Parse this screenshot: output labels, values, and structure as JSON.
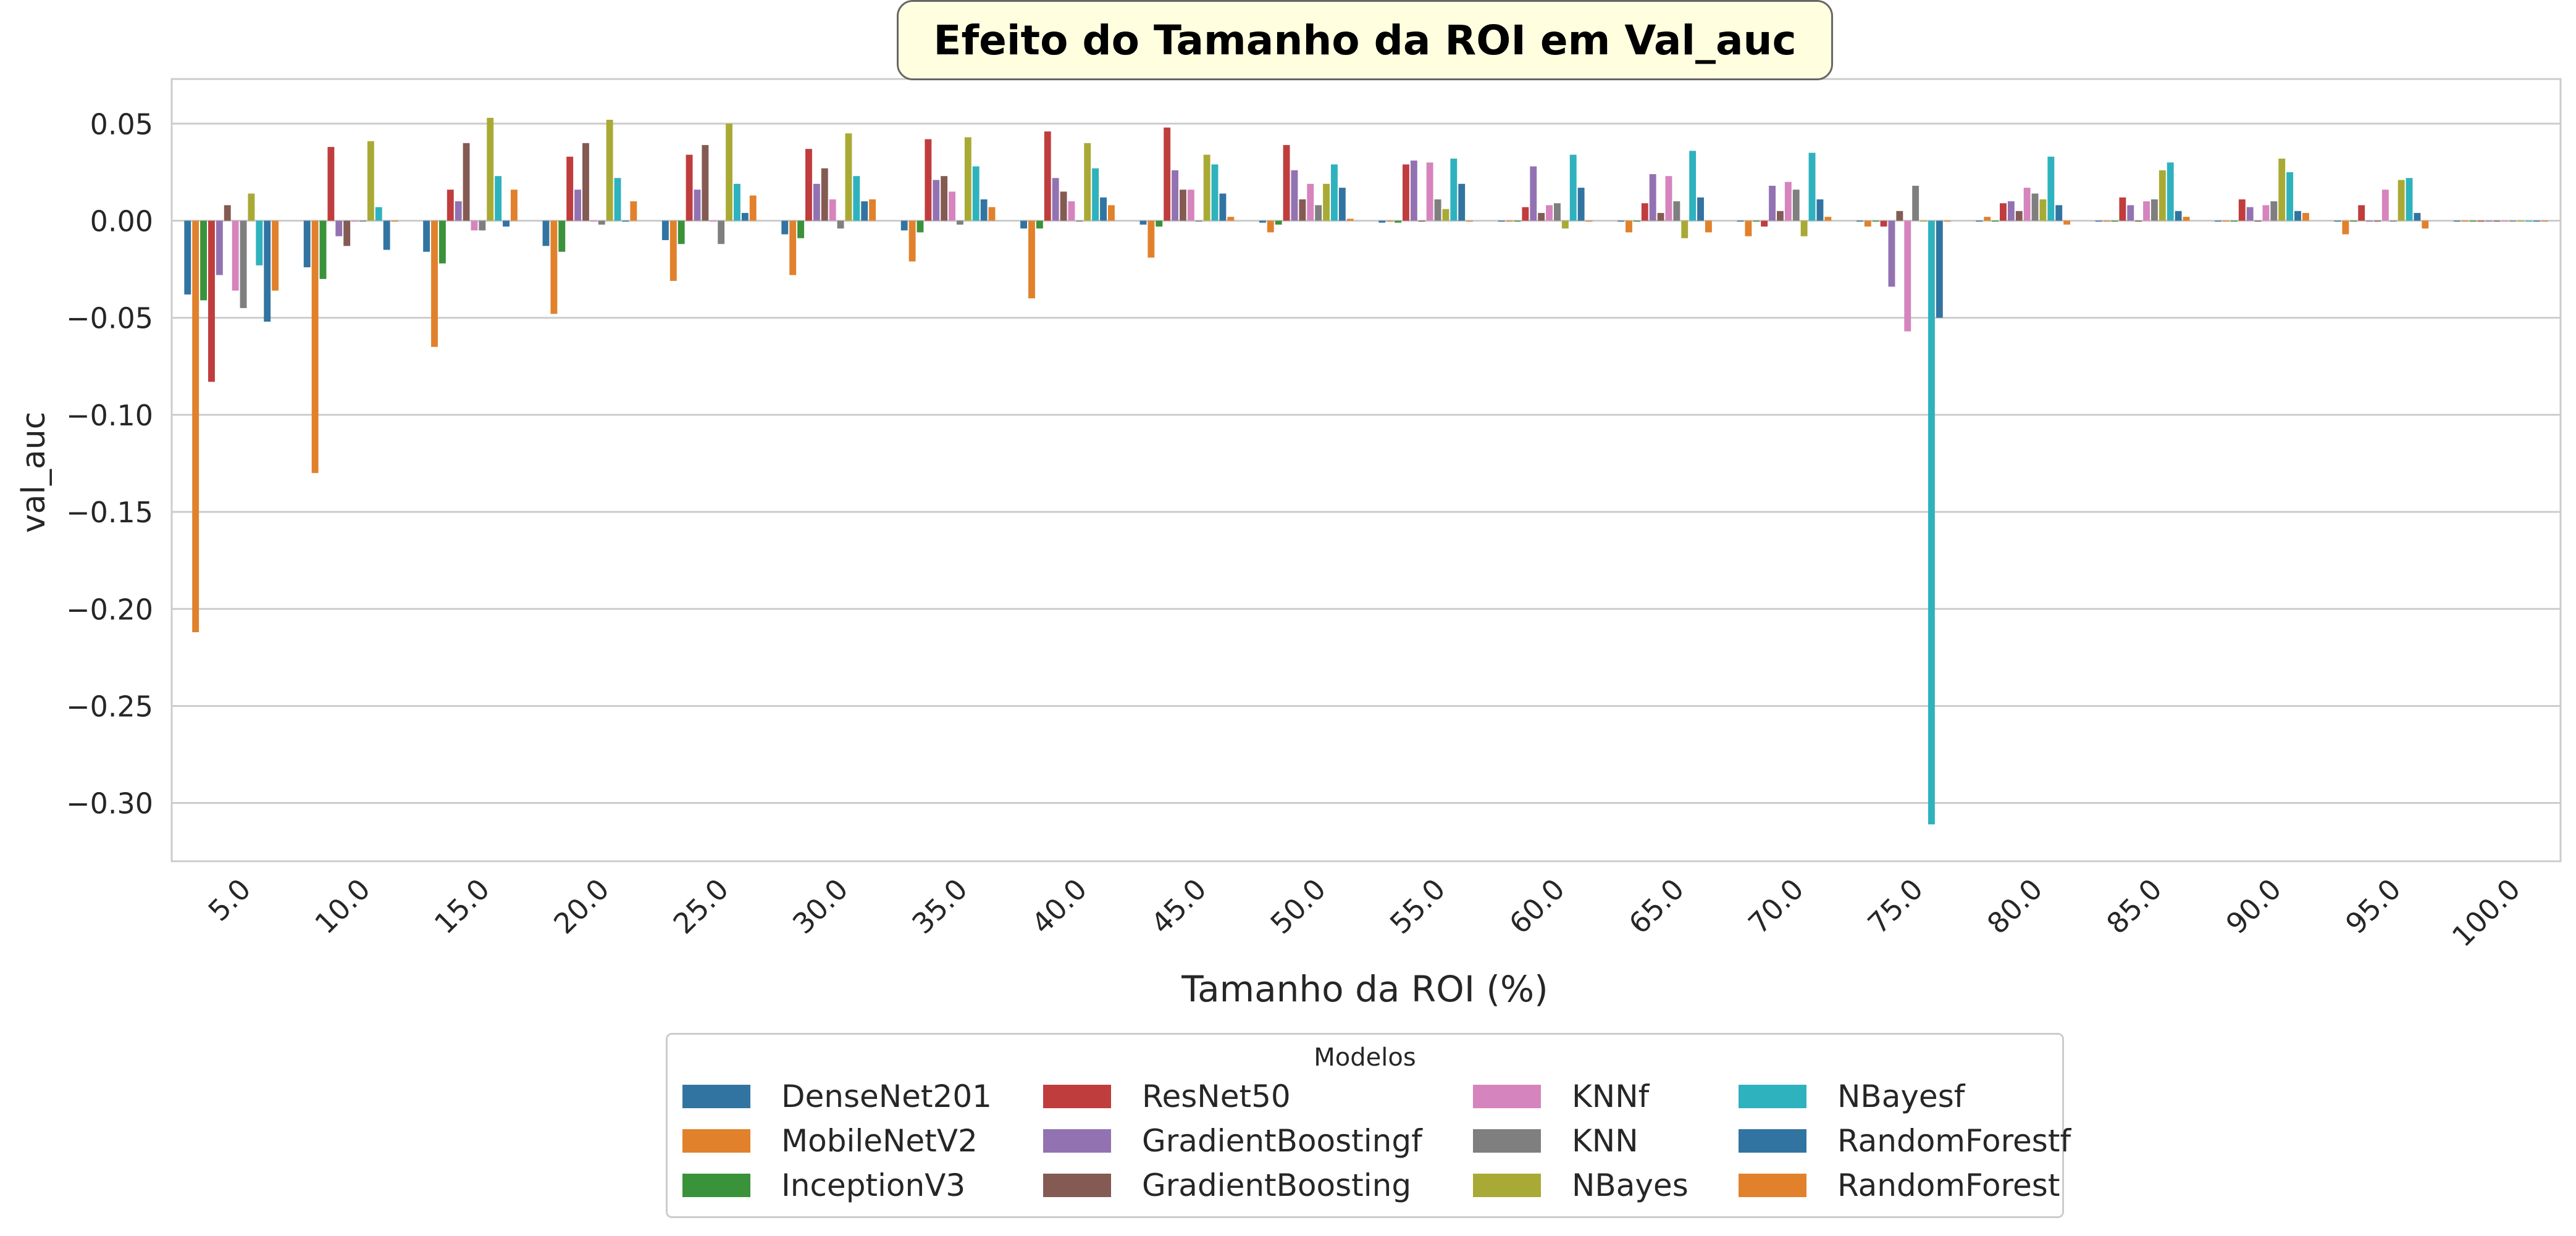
{
  "chart_data": {
    "type": "bar",
    "title": "Efeito do Tamanho da ROI em  Val_auc",
    "xlabel": "Tamanho da ROI (%)",
    "ylabel": "val_auc",
    "ylim": [
      -0.33,
      0.073
    ],
    "yticks": [
      0.05,
      0.0,
      -0.05,
      -0.1,
      -0.15,
      -0.2,
      -0.25,
      -0.3
    ],
    "ytick_labels": [
      "0.05",
      "0.00",
      "−0.05",
      "−0.10",
      "−0.15",
      "−0.20",
      "−0.25",
      "−0.30"
    ],
    "grid": "horizontal",
    "legend_title": "Modelos",
    "legend_position": "bottom-center",
    "categories": [
      "5.0",
      "10.0",
      "15.0",
      "20.0",
      "25.0",
      "30.0",
      "35.0",
      "40.0",
      "45.0",
      "50.0",
      "55.0",
      "60.0",
      "65.0",
      "70.0",
      "75.0",
      "80.0",
      "85.0",
      "90.0",
      "95.0",
      "100.0"
    ],
    "series": [
      {
        "name": "DenseNet201",
        "color": "#3274a1",
        "values": [
          -0.038,
          -0.024,
          -0.016,
          -0.013,
          -0.01,
          -0.007,
          -0.005,
          -0.004,
          -0.002,
          -0.001,
          -0.001,
          0.0,
          0.0,
          0.0,
          0.0,
          0.0,
          0.0,
          0.0,
          0.0,
          0.0
        ]
      },
      {
        "name": "MobileNetV2",
        "color": "#e1812c",
        "values": [
          -0.212,
          -0.13,
          -0.065,
          -0.048,
          -0.031,
          -0.028,
          -0.021,
          -0.04,
          -0.019,
          -0.006,
          0.0,
          0.0,
          -0.006,
          -0.008,
          -0.003,
          0.002,
          0.0,
          0.0,
          -0.007,
          0.0
        ]
      },
      {
        "name": "InceptionV3",
        "color": "#3a923a",
        "values": [
          -0.041,
          -0.03,
          -0.022,
          -0.016,
          -0.012,
          -0.009,
          -0.006,
          -0.004,
          -0.003,
          -0.002,
          -0.001,
          0.0,
          0.0,
          0.0,
          0.0,
          0.0,
          0.0,
          0.0,
          0.0,
          0.0
        ]
      },
      {
        "name": "ResNet50",
        "color": "#c03d3e",
        "values": [
          -0.083,
          0.038,
          0.016,
          0.033,
          0.034,
          0.037,
          0.042,
          0.046,
          0.048,
          0.039,
          0.029,
          0.007,
          0.009,
          -0.003,
          -0.003,
          0.009,
          0.012,
          0.011,
          0.008,
          0.0
        ]
      },
      {
        "name": "GradientBoostingf",
        "color": "#9372b2",
        "values": [
          -0.028,
          -0.008,
          0.01,
          0.016,
          0.016,
          0.019,
          0.021,
          0.022,
          0.026,
          0.026,
          0.031,
          0.028,
          0.024,
          0.018,
          -0.034,
          0.01,
          0.008,
          0.007,
          0.0,
          0.0
        ]
      },
      {
        "name": "GradientBoosting",
        "color": "#845b53",
        "values": [
          0.008,
          -0.013,
          0.04,
          0.04,
          0.039,
          0.027,
          0.023,
          0.015,
          0.016,
          0.011,
          0.0,
          0.004,
          0.004,
          0.005,
          0.005,
          0.005,
          0.0,
          0.0,
          0.0,
          0.0
        ]
      },
      {
        "name": "KNNf",
        "color": "#d684bd",
        "values": [
          -0.036,
          0.0,
          -0.005,
          0.0,
          0.0,
          0.011,
          0.015,
          0.01,
          0.016,
          0.019,
          0.03,
          0.008,
          0.023,
          0.02,
          -0.057,
          0.017,
          0.01,
          0.008,
          0.016,
          0.0
        ]
      },
      {
        "name": "KNN",
        "color": "#7f7f7f",
        "values": [
          -0.045,
          0.0,
          -0.005,
          -0.002,
          -0.012,
          -0.004,
          -0.002,
          0.0,
          0.0,
          0.008,
          0.011,
          0.009,
          0.01,
          0.016,
          0.018,
          0.014,
          0.011,
          0.01,
          0.0,
          0.0
        ]
      },
      {
        "name": "NBayes",
        "color": "#a9aa35",
        "values": [
          0.014,
          0.041,
          0.053,
          0.052,
          0.05,
          0.045,
          0.043,
          0.04,
          0.034,
          0.019,
          0.006,
          -0.004,
          -0.009,
          -0.008,
          0.0,
          0.011,
          0.026,
          0.032,
          0.021,
          0.0
        ]
      },
      {
        "name": "NBayesf",
        "color": "#2eb2be",
        "values": [
          -0.023,
          0.007,
          0.023,
          0.022,
          0.019,
          0.023,
          0.028,
          0.027,
          0.029,
          0.029,
          0.032,
          0.034,
          0.036,
          0.035,
          -0.311,
          0.033,
          0.03,
          0.025,
          0.022,
          0.0
        ]
      },
      {
        "name": "RandomForestf",
        "color": "#3274a1",
        "values": [
          -0.052,
          -0.015,
          -0.003,
          0.0,
          0.004,
          0.01,
          0.011,
          0.012,
          0.014,
          0.017,
          0.019,
          0.017,
          0.012,
          0.011,
          -0.05,
          0.008,
          0.005,
          0.005,
          0.004,
          0.0
        ]
      },
      {
        "name": "RandomForest",
        "color": "#e1812c",
        "values": [
          -0.036,
          0.0,
          0.016,
          0.01,
          0.013,
          0.011,
          0.007,
          0.008,
          0.002,
          0.001,
          0.0,
          0.0,
          -0.006,
          0.002,
          0.0,
          -0.002,
          0.002,
          0.004,
          -0.004,
          0.0
        ]
      }
    ]
  }
}
